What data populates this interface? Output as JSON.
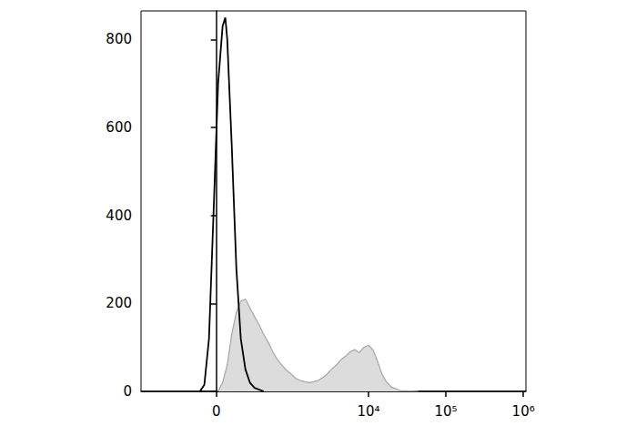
{
  "chart_data": {
    "type": "histogram",
    "xlim": [
      -1000,
      1080000
    ],
    "xticks": [
      0,
      {
        "value": 10000,
        "label": "10⁴"
      },
      {
        "value": 100000,
        "label": "10⁵"
      },
      {
        "value": 1000000,
        "label": "10⁶"
      }
    ],
    "ylim": [
      0,
      865
    ],
    "yticks": [
      0,
      200,
      400,
      600,
      800
    ],
    "grid": false,
    "series": [
      {
        "type": "area",
        "color": "#dcdcdc",
        "x": [
          12,
          41,
          72,
          103,
          137,
          172,
          212,
          254,
          303,
          360,
          417,
          490,
          560,
          650,
          743,
          860,
          983,
          1130,
          1296,
          1500,
          1704,
          1950,
          2240,
          2600,
          2940,
          3400,
          3850,
          4400,
          5050,
          5800,
          6630,
          7600,
          8700,
          10000,
          11400,
          13000,
          14900,
          17000,
          19600,
          25700,
          44000
        ],
        "values": [
          0,
          20,
          60,
          130,
          180,
          205,
          210,
          190,
          170,
          150,
          130,
          110,
          90,
          72,
          60,
          48,
          40,
          30,
          25,
          22,
          20,
          22,
          25,
          32,
          40,
          52,
          60,
          72,
          80,
          90,
          95,
          88,
          100,
          105,
          95,
          70,
          40,
          22,
          10,
          2,
          0
        ]
      },
      {
        "type": "line",
        "color": "#000000",
        "x": [
          -109,
          -78,
          -47,
          -18,
          12,
          41,
          59,
          72,
          103,
          137,
          172,
          212,
          254,
          303,
          417
        ],
        "values": [
          0,
          15,
          120,
          400,
          700,
          830,
          850,
          800,
          560,
          280,
          120,
          50,
          20,
          8,
          0
        ]
      }
    ]
  }
}
